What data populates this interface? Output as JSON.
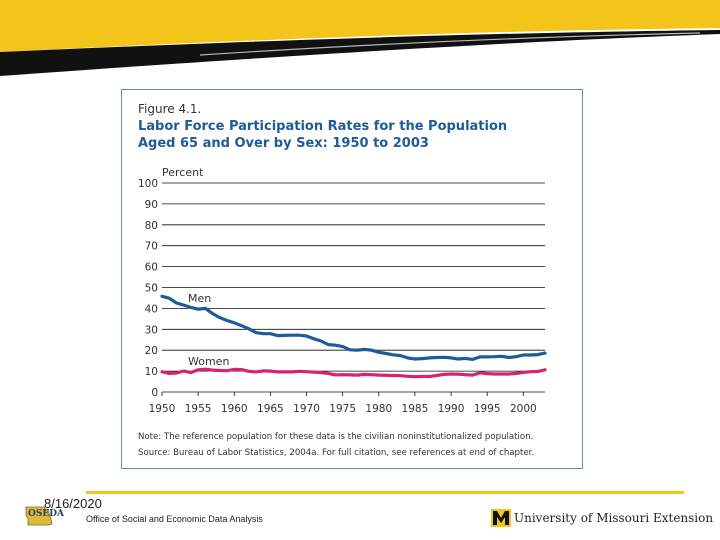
{
  "footer": {
    "date": "8/16/2020",
    "logo_text": "OSEDA",
    "org": "Office of Social and Economic Data Analysis",
    "university": "University of Missouri Extension"
  },
  "colors": {
    "banner": "#f3c41a",
    "frame": "#5a8fbf",
    "title": "#1f5b98",
    "men": "#1f5b98",
    "women": "#d6246e"
  },
  "chart_data": {
    "type": "line",
    "figure_label": "Figure 4.1.",
    "title_line1": "Labor Force Participation Rates for the Population",
    "title_line2": "Aged 65 and Over by Sex:  1950 to 2003",
    "ylabel": "Percent",
    "ylim": [
      0,
      100
    ],
    "yticks": [
      0,
      10,
      20,
      30,
      40,
      50,
      60,
      70,
      80,
      90,
      100
    ],
    "xlim": [
      1950,
      2003
    ],
    "xticks": [
      1950,
      1955,
      1960,
      1965,
      1970,
      1975,
      1980,
      1985,
      1990,
      1995,
      2000
    ],
    "grid": true,
    "note": "Note:  The reference population for these data is the civilian noninstitutionalized population.",
    "source": "Source:  Bureau of Labor Statistics, 2004a.  For full citation, see references at end of chapter.",
    "series": [
      {
        "name": "Men",
        "color": "#1f5b98",
        "x": [
          1950,
          1951,
          1952,
          1953,
          1954,
          1955,
          1956,
          1957,
          1958,
          1959,
          1960,
          1961,
          1962,
          1963,
          1964,
          1965,
          1966,
          1967,
          1968,
          1969,
          1970,
          1971,
          1972,
          1973,
          1974,
          1975,
          1976,
          1977,
          1978,
          1979,
          1980,
          1981,
          1982,
          1983,
          1984,
          1985,
          1986,
          1987,
          1988,
          1989,
          1990,
          1991,
          1992,
          1993,
          1994,
          1995,
          1996,
          1997,
          1998,
          1999,
          2000,
          2001,
          2002,
          2003
        ],
        "values": [
          45.8,
          44.9,
          42.6,
          41.6,
          40.5,
          39.6,
          40.0,
          37.5,
          35.6,
          34.2,
          33.1,
          31.7,
          30.3,
          28.4,
          27.9,
          27.9,
          27.0,
          27.1,
          27.2,
          27.2,
          26.8,
          25.5,
          24.4,
          22.7,
          22.4,
          21.7,
          20.2,
          20.0,
          20.4,
          20.0,
          19.0,
          18.4,
          17.8,
          17.4,
          16.3,
          15.8,
          16.0,
          16.3,
          16.5,
          16.6,
          16.3,
          15.8,
          16.1,
          15.6,
          16.8,
          16.8,
          16.9,
          17.1,
          16.5,
          16.9,
          17.7,
          17.7,
          17.9,
          18.6
        ]
      },
      {
        "name": "Women",
        "color": "#d6246e",
        "x": [
          1950,
          1951,
          1952,
          1953,
          1954,
          1955,
          1956,
          1957,
          1958,
          1959,
          1960,
          1961,
          1962,
          1963,
          1964,
          1965,
          1966,
          1967,
          1968,
          1969,
          1970,
          1971,
          1972,
          1973,
          1974,
          1975,
          1976,
          1977,
          1978,
          1979,
          1980,
          1981,
          1982,
          1983,
          1984,
          1985,
          1986,
          1987,
          1988,
          1989,
          1990,
          1991,
          1992,
          1993,
          1994,
          1995,
          1996,
          1997,
          1998,
          1999,
          2000,
          2001,
          2002,
          2003
        ],
        "values": [
          9.7,
          8.9,
          9.1,
          10.0,
          9.3,
          10.6,
          10.9,
          10.5,
          10.3,
          10.2,
          10.8,
          10.7,
          9.9,
          9.6,
          10.1,
          10.0,
          9.6,
          9.6,
          9.6,
          9.9,
          9.7,
          9.5,
          9.3,
          8.9,
          8.2,
          8.3,
          8.2,
          8.1,
          8.4,
          8.3,
          8.1,
          8.0,
          7.9,
          7.8,
          7.5,
          7.3,
          7.4,
          7.4,
          7.9,
          8.4,
          8.6,
          8.5,
          8.3,
          8.1,
          9.2,
          8.8,
          8.6,
          8.6,
          8.6,
          8.9,
          9.4,
          9.7,
          9.8,
          10.6
        ]
      }
    ]
  }
}
